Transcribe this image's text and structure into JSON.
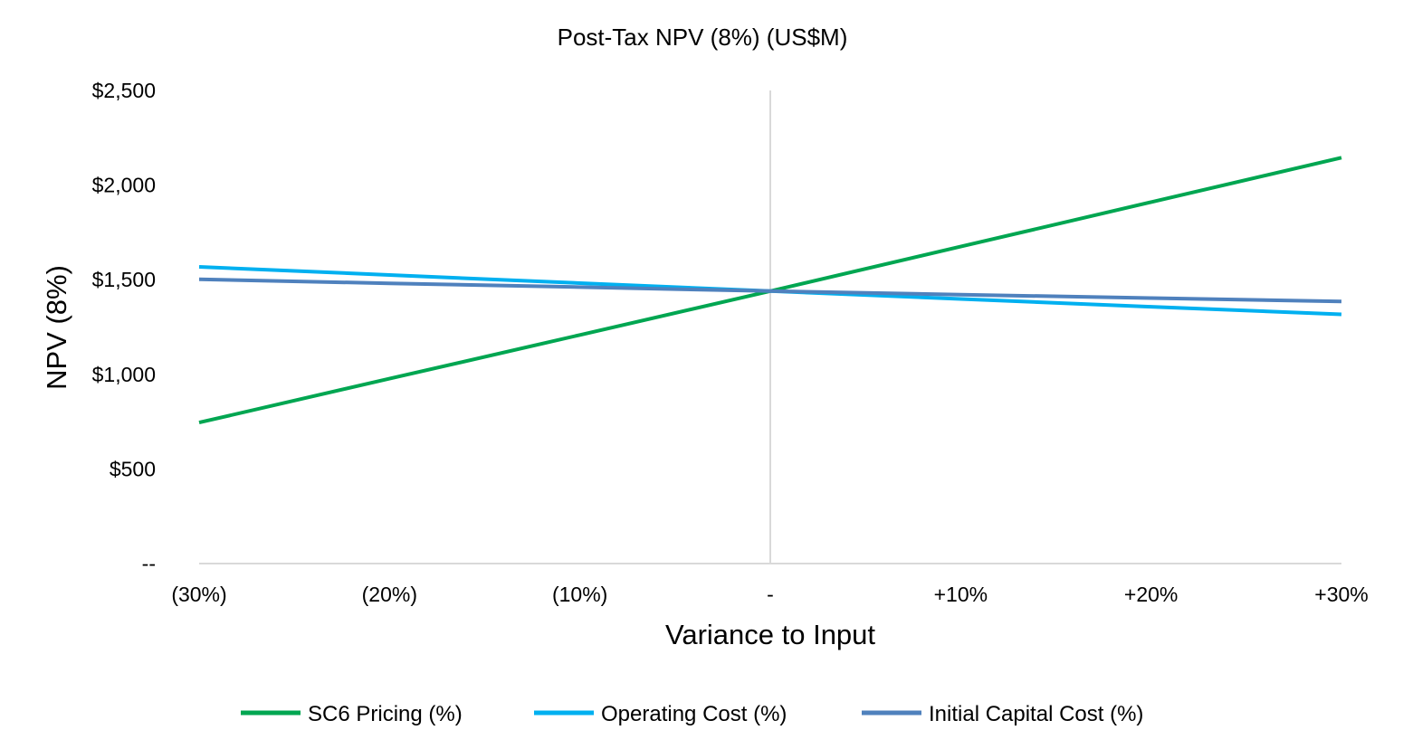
{
  "chart_data": {
    "type": "line",
    "title": "Post-Tax NPV (8%) (US$M)",
    "xlabel": "Variance to Input",
    "ylabel": "NPV (8%)",
    "categories": [
      "(30%)",
      "(20%)",
      "(10%)",
      "-",
      "+10%",
      "+20%",
      "+30%"
    ],
    "x": [
      -30,
      -20,
      -10,
      0,
      10,
      20,
      30
    ],
    "ylim": [
      0,
      2500
    ],
    "yticks": [
      0,
      500,
      1000,
      1500,
      2000,
      2500
    ],
    "ytick_labels": [
      "--",
      "$500",
      "$1,000",
      "$1,500",
      "$2,000",
      "$2,500"
    ],
    "grid": false,
    "legend_position": "bottom",
    "series": [
      {
        "name": "SC6 Pricing (%)",
        "color": "#00A651",
        "values": [
          745,
          977,
          1208,
          1440,
          1675,
          1910,
          2145
        ]
      },
      {
        "name": "Operating Cost (%)",
        "color": "#00B0F0",
        "values": [
          1568,
          1525,
          1482,
          1440,
          1398,
          1357,
          1317
        ]
      },
      {
        "name": "Initial Capital Cost (%)",
        "color": "#4F81BD",
        "values": [
          1502,
          1481,
          1461,
          1440,
          1421,
          1403,
          1385
        ]
      }
    ],
    "axis_color": "#D9D9D9"
  }
}
